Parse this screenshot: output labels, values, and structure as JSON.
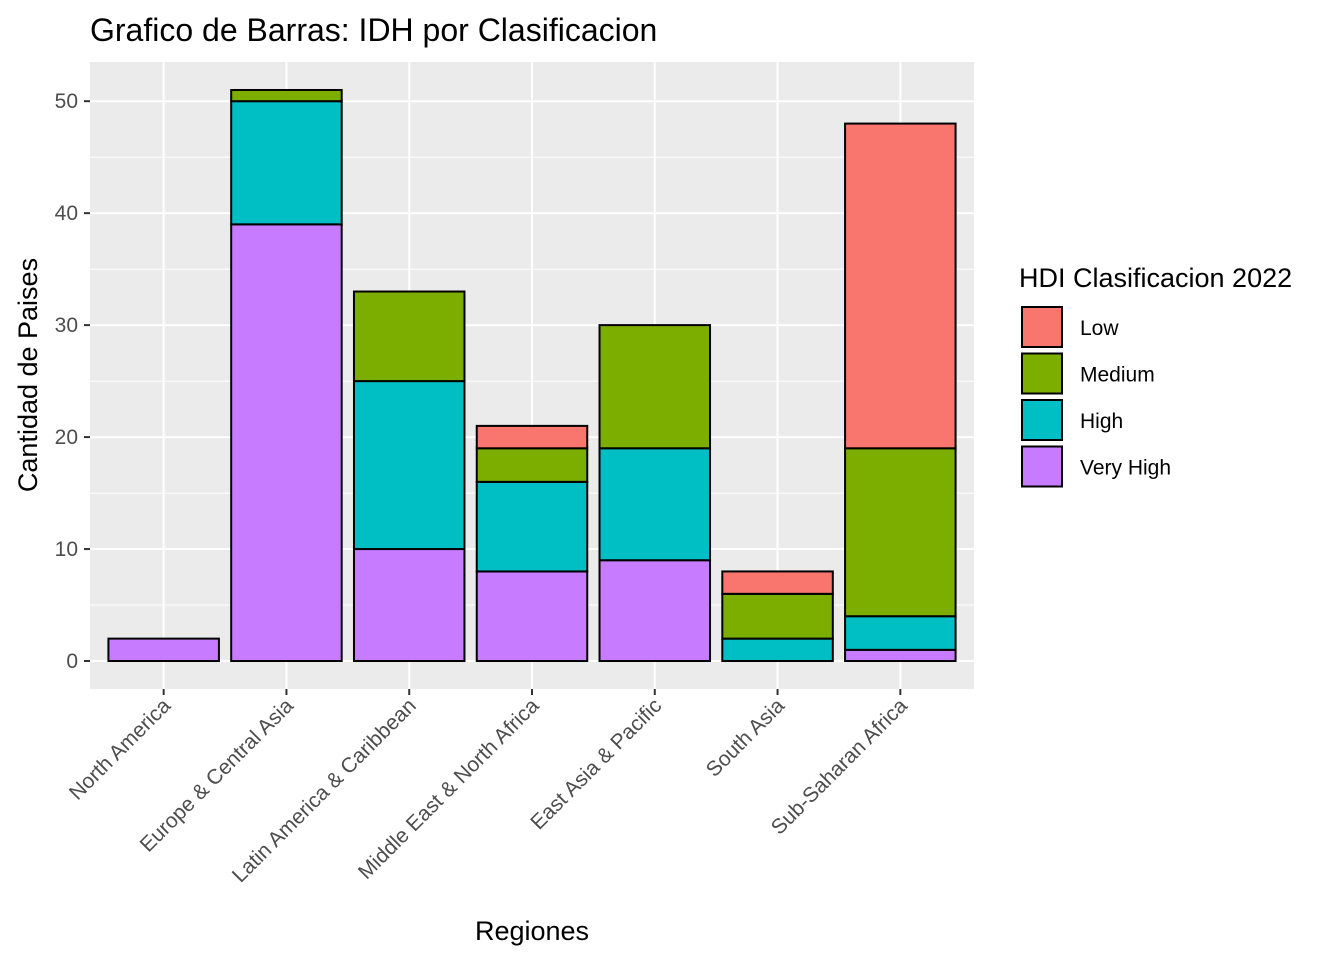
{
  "chart_data": {
    "type": "bar",
    "stacked": true,
    "title": "Grafico de Barras: IDH por Clasificacion",
    "xlabel": "Regiones",
    "ylabel": "Cantidad de Paises",
    "ylim": [
      -2.5,
      53.5
    ],
    "yticks": [
      0,
      10,
      20,
      30,
      40,
      50
    ],
    "grid": true,
    "legend_position": "right",
    "legend_title": "HDI Clasificacion 2022",
    "categories": [
      "North America",
      "Europe & Central Asia",
      "Latin America & Caribbean",
      "Middle East & North Africa",
      "East Asia & Pacific",
      "South Asia",
      "Sub-Saharan Africa"
    ],
    "series": [
      {
        "name": "Low",
        "color": "#F8766D",
        "values": [
          0,
          0,
          0,
          2,
          0,
          2,
          29
        ]
      },
      {
        "name": "Medium",
        "color": "#7CAE00",
        "values": [
          0,
          1,
          8,
          3,
          11,
          4,
          15
        ]
      },
      {
        "name": "High",
        "color": "#00BFC4",
        "values": [
          0,
          11,
          15,
          8,
          10,
          2,
          3
        ]
      },
      {
        "name": "Very High",
        "color": "#C77CFF",
        "values": [
          2,
          39,
          10,
          8,
          9,
          0,
          1
        ]
      }
    ],
    "stack_order_bottom_to_top": [
      "Very High",
      "High",
      "Medium",
      "Low"
    ],
    "panel_background": "#EBEBEB",
    "grid_color": "#FFFFFF",
    "bar_outline": "#000000"
  }
}
